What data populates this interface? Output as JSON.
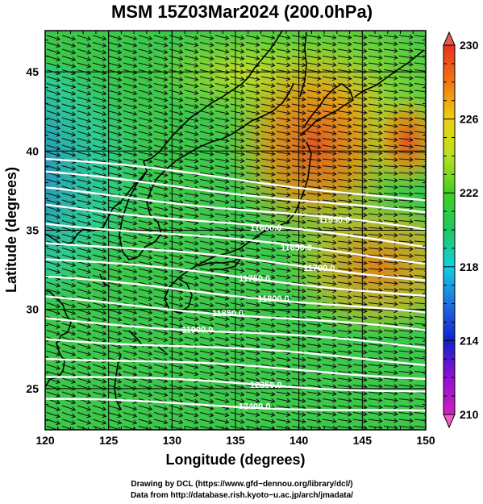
{
  "chart_data": {
    "type": "heatmap",
    "title": "MSM 15Z03Mar2024 (200.0hPa)",
    "xlabel": "Longitude (degrees)",
    "ylabel": "Latitude  (degrees)",
    "xlim": [
      120,
      150
    ],
    "ylim": [
      22.4,
      47.6
    ],
    "x_ticks": [
      120,
      125,
      130,
      135,
      140,
      145,
      150
    ],
    "y_ticks": [
      25,
      30,
      35,
      40,
      45
    ],
    "grid": true,
    "colorbar": {
      "min": 210,
      "max": 230,
      "ticks": [
        210,
        214,
        218,
        222,
        226,
        230
      ],
      "extend": "both",
      "colors": [
        "#d020c0",
        "#1020d0",
        "#10d0e0",
        "#40d020",
        "#f0d010",
        "#e83020"
      ]
    },
    "shaded_field_description": "",
    "contours": [
      {
        "label": "",
        "lat_west": 39.5,
        "lat_east": 36.8
      },
      {
        "label": "",
        "lat_west": 38.6,
        "lat_east": 36.0
      },
      {
        "label": "11550.0",
        "lat_west": 37.6,
        "lat_east": 35.0
      },
      {
        "label": "11600.0",
        "lat_west": 36.6,
        "lat_east": 34.0
      },
      {
        "label": "11650.0",
        "lat_west": 35.5,
        "lat_east": 33.0
      },
      {
        "label": "11700.0",
        "lat_west": 34.3,
        "lat_east": 31.9
      },
      {
        "label": "11750.0",
        "lat_west": 33.2,
        "lat_east": 30.8
      },
      {
        "label": "11800.0",
        "lat_west": 32.0,
        "lat_east": 29.7
      },
      {
        "label": "11850.0",
        "lat_west": 30.7,
        "lat_east": 28.6
      },
      {
        "label": "11900.0",
        "lat_west": 29.4,
        "lat_east": 27.6
      },
      {
        "label": "",
        "lat_west": 28.2,
        "lat_east": 26.6
      },
      {
        "label": "",
        "lat_west": 27.0,
        "lat_east": 25.7
      },
      {
        "label": "12350.0",
        "lat_west": 25.8,
        "lat_east": 24.8
      },
      {
        "label": "12400.0",
        "lat_west": 24.3,
        "lat_east": 23.5
      }
    ]
  },
  "footer": {
    "drawing": "Drawing by DCL (https://www.gfd−dennou.org/library/dcl/)",
    "data": "Data from http://database.rish.kyoto−u.ac.jp/arch/jmadata/"
  }
}
